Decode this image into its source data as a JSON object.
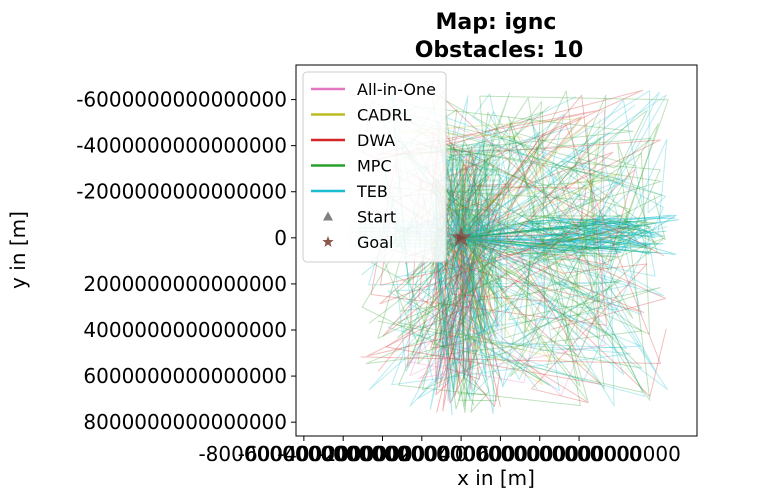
{
  "chart_data": {
    "type": "line",
    "title_line1": "Map: ignc",
    "title_line2": "Obstacles: 10",
    "xlabel": "x in [m]",
    "ylabel": "y in [m]",
    "y_inverted": true,
    "xlim": [
      -8400000000000000,
      12000000000000000
    ],
    "ylim": [
      -7500000000000000,
      8600000000000000
    ],
    "xticks": [
      -8000000000000000,
      -6000000000000000,
      -4000000000000000,
      -2000000000000000,
      0,
      2000000000000000,
      4000000000000000,
      6000000000000000
    ],
    "xtick_labels": [
      "-8000000000000000",
      "-6000000000000000",
      "-4000000000000000",
      "-2000000000000000",
      "0",
      "2000000000000000",
      "4000000000000000",
      "6000000000000000"
    ],
    "yticks": [
      -6000000000000000,
      -4000000000000000,
      -2000000000000000,
      0,
      2000000000000000,
      4000000000000000,
      6000000000000000,
      8000000000000000
    ],
    "ytick_labels": [
      "-6000000000000000",
      "-4000000000000000",
      "-2000000000000000",
      "0",
      "2000000000000000",
      "4000000000000000",
      "6000000000000000",
      "8000000000000000"
    ],
    "legend_position": "upper-left",
    "start": {
      "x": 0,
      "y": 0,
      "color": "#7f7f7f"
    },
    "goal": {
      "x": 0,
      "y": 0,
      "color": "#8c564b"
    },
    "series": [
      {
        "name": "All-in-One",
        "color": "#e377c2"
      },
      {
        "name": "CADRL",
        "color": "#bcbd22"
      },
      {
        "name": "DWA",
        "color": "#d62728"
      },
      {
        "name": "MPC",
        "color": "#2ca02c"
      },
      {
        "name": "TEB",
        "color": "#17becf"
      }
    ],
    "markers": [
      {
        "name": "Start",
        "symbol": "triangle",
        "color": "#7f7f7f"
      },
      {
        "name": "Goal",
        "symbol": "star",
        "color": "#8c564b"
      }
    ]
  }
}
